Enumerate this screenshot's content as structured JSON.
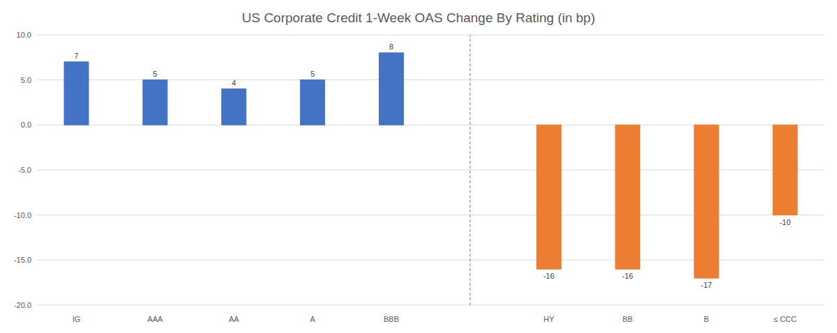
{
  "chart_data": {
    "type": "bar",
    "title": "US Corporate Credit 1-Week OAS Change By Rating (in bp)",
    "categories": [
      "IG",
      "AAA",
      "AA",
      "A",
      "BBB",
      null,
      "HY",
      "BB",
      "B",
      "≤ CCC"
    ],
    "values": [
      7,
      5,
      4,
      5,
      8,
      null,
      -16,
      -16,
      -17,
      -10
    ],
    "colors": [
      "#4472c4",
      "#4472c4",
      "#4472c4",
      "#4472c4",
      "#4472c4",
      null,
      "#ed7d31",
      "#ed7d31",
      "#ed7d31",
      "#ed7d31"
    ],
    "ylim": [
      -20,
      10
    ],
    "yticks": [
      {
        "value": 10,
        "label": "10.0"
      },
      {
        "value": 5,
        "label": "5.0"
      },
      {
        "value": 0,
        "label": "0.0"
      },
      {
        "value": -5,
        "label": "-5.0"
      },
      {
        "value": -10,
        "label": "-10.0"
      },
      {
        "value": -15,
        "label": "-15.0"
      },
      {
        "value": -20,
        "label": "-20.0"
      }
    ],
    "grid": true,
    "data_labels": true
  }
}
